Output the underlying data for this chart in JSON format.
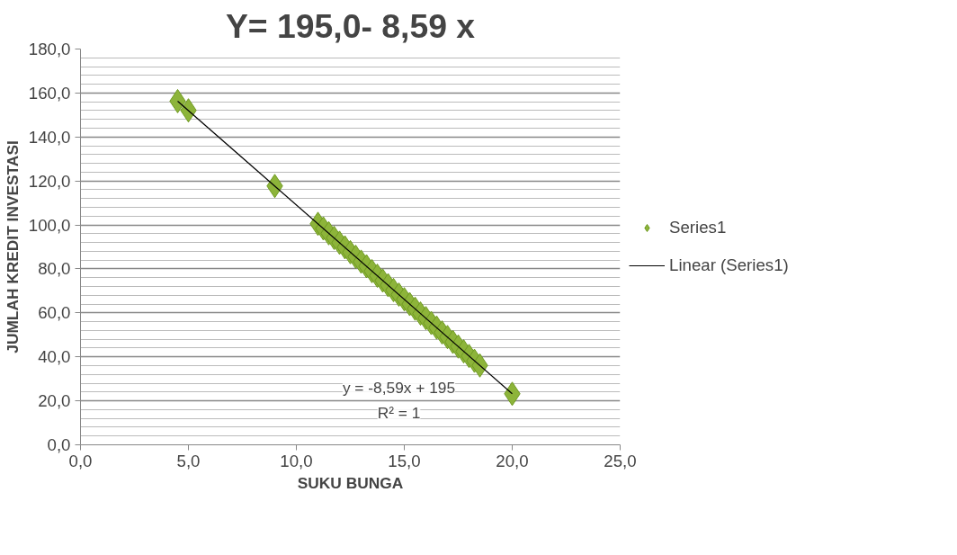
{
  "chart_data": {
    "type": "scatter",
    "title": "Y= 195,0- 8,59 x",
    "xlabel": "SUKU BUNGA",
    "ylabel": "JUMLAH KREDIT INVESTASI",
    "series": [
      {
        "name": "Series1",
        "type": "scatter",
        "color": "#8db43a",
        "marker": "diamond",
        "x": [
          4.5,
          5,
          9,
          11,
          11.25,
          11.5,
          11.75,
          12,
          12.25,
          12.5,
          12.75,
          13,
          13.25,
          13.5,
          13.75,
          14,
          14.25,
          14.5,
          14.75,
          15,
          15.25,
          15.5,
          15.75,
          16,
          16.25,
          16.5,
          16.75,
          17,
          17.25,
          17.5,
          17.75,
          18,
          18.25,
          18.5,
          20
        ],
        "values": [
          156.3,
          152.1,
          117.7,
          100.5,
          98.4,
          96.2,
          94.1,
          91.9,
          89.8,
          87.6,
          85.5,
          83.3,
          81.2,
          79.0,
          76.9,
          74.7,
          72.6,
          70.4,
          68.3,
          66.2,
          64.0,
          61.9,
          59.7,
          57.6,
          55.4,
          53.3,
          51.1,
          49.0,
          46.8,
          44.7,
          42.5,
          40.4,
          38.2,
          36.1,
          23.2
        ]
      },
      {
        "name": "Linear (Series1)",
        "type": "line",
        "color": "#000000",
        "line_style": "solid",
        "x": [
          4.5,
          20
        ],
        "values": [
          156.3,
          23.2
        ]
      }
    ],
    "xlim": [
      0,
      25
    ],
    "ylim": [
      0,
      180
    ],
    "xticks": [
      {
        "value": 0,
        "label": "0,0"
      },
      {
        "value": 5,
        "label": "5,0"
      },
      {
        "value": 10,
        "label": "10,0"
      },
      {
        "value": 15,
        "label": "15,0"
      },
      {
        "value": 20,
        "label": "20,0"
      },
      {
        "value": 25,
        "label": "25,0"
      }
    ],
    "yticks": [
      {
        "value": 0,
        "label": "0,0"
      },
      {
        "value": 20,
        "label": "20,0"
      },
      {
        "value": 40,
        "label": "40,0"
      },
      {
        "value": 60,
        "label": "60,0"
      },
      {
        "value": 80,
        "label": "80,0"
      },
      {
        "value": 100,
        "label": "100,0"
      },
      {
        "value": 120,
        "label": "120,0"
      },
      {
        "value": 140,
        "label": "140,0"
      },
      {
        "value": 160,
        "label": "160,0"
      },
      {
        "value": 180,
        "label": "180,0"
      }
    ],
    "grid": "y",
    "legend": "right",
    "annotations": [
      "y = -8,59x + 195",
      "R² = 1"
    ]
  }
}
